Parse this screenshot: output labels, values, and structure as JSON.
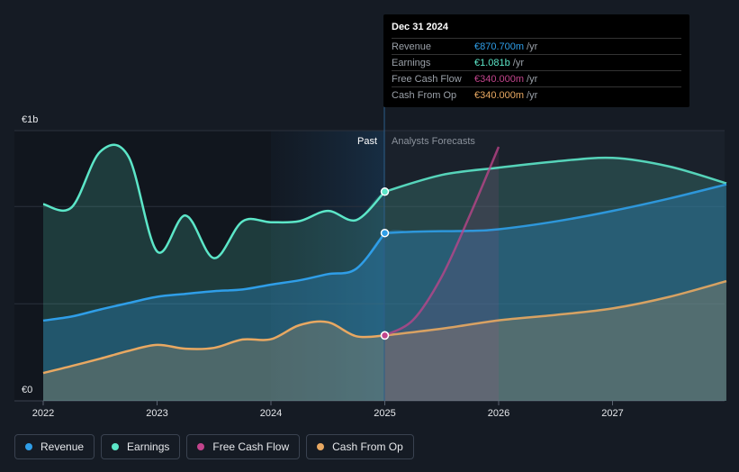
{
  "chart_data": {
    "type": "area",
    "y_axis": {
      "top_label": "€1b",
      "bottom_label": "€0",
      "ylim": [
        0,
        1000
      ]
    },
    "x_ticks": [
      "2022",
      "2023",
      "2024",
      "2025",
      "2026",
      "2027"
    ],
    "zones": {
      "past": "Past",
      "forecast": "Analysts Forecasts"
    },
    "series": [
      {
        "name": "Revenue",
        "color": "#2f9ee8",
        "past": [
          [
            2022.0,
            297
          ],
          [
            2022.25,
            312
          ],
          [
            2022.5,
            338
          ],
          [
            2022.75,
            362
          ],
          [
            2023.0,
            385
          ],
          [
            2023.25,
            396
          ],
          [
            2023.5,
            406
          ],
          [
            2023.75,
            412
          ],
          [
            2024.0,
            430
          ],
          [
            2024.25,
            446
          ],
          [
            2024.5,
            469
          ],
          [
            2024.75,
            489
          ],
          [
            2025.0,
            621
          ]
        ],
        "forecast": [
          [
            2025.0,
            621
          ],
          [
            2025.25,
            626
          ],
          [
            2025.5,
            628
          ],
          [
            2025.75,
            629
          ],
          [
            2026.0,
            635
          ],
          [
            2026.5,
            664
          ],
          [
            2027.0,
            703
          ],
          [
            2027.5,
            749
          ],
          [
            2028.0,
            801
          ]
        ]
      },
      {
        "name": "Earnings",
        "color": "#5ce6c8",
        "past": [
          [
            2022.0,
            728
          ],
          [
            2022.25,
            716
          ],
          [
            2022.5,
            922
          ],
          [
            2022.75,
            903
          ],
          [
            2023.0,
            553
          ],
          [
            2023.25,
            686
          ],
          [
            2023.5,
            528
          ],
          [
            2023.75,
            664
          ],
          [
            2024.0,
            661
          ],
          [
            2024.25,
            665
          ],
          [
            2024.5,
            703
          ],
          [
            2024.75,
            669
          ],
          [
            2025.0,
            774
          ]
        ],
        "forecast": [
          [
            2025.0,
            774
          ],
          [
            2025.5,
            836
          ],
          [
            2026.0,
            863
          ],
          [
            2026.5,
            886
          ],
          [
            2027.0,
            899
          ],
          [
            2027.5,
            867
          ],
          [
            2028.0,
            805
          ]
        ]
      },
      {
        "name": "Free Cash Flow",
        "color": "#c2448c",
        "past": [],
        "forecast": [
          [
            2025.0,
            242
          ],
          [
            2025.25,
            300
          ],
          [
            2025.5,
            460
          ],
          [
            2025.75,
            690
          ],
          [
            2026.0,
            940
          ]
        ]
      },
      {
        "name": "Cash From Op",
        "color": "#e8a862",
        "past": [
          [
            2022.0,
            103
          ],
          [
            2022.25,
            129
          ],
          [
            2022.5,
            156
          ],
          [
            2022.75,
            185
          ],
          [
            2023.0,
            207
          ],
          [
            2023.25,
            193
          ],
          [
            2023.5,
            196
          ],
          [
            2023.75,
            227
          ],
          [
            2024.0,
            228
          ],
          [
            2024.25,
            280
          ],
          [
            2024.5,
            291
          ],
          [
            2024.75,
            239
          ],
          [
            2025.0,
            242
          ]
        ],
        "forecast": [
          [
            2025.0,
            242
          ],
          [
            2025.5,
            267
          ],
          [
            2026.0,
            298
          ],
          [
            2026.5,
            318
          ],
          [
            2027.0,
            342
          ],
          [
            2027.5,
            385
          ],
          [
            2028.0,
            443
          ]
        ]
      }
    ]
  },
  "tooltip": {
    "date": "Dec 31 2024",
    "rows": [
      {
        "name": "Revenue",
        "value": "€870.700m",
        "unit": "/yr",
        "color": "#2f9ee8"
      },
      {
        "name": "Earnings",
        "value": "€1.081b",
        "unit": "/yr",
        "color": "#5ce6c8"
      },
      {
        "name": "Free Cash Flow",
        "value": "€340.000m",
        "unit": "/yr",
        "color": "#c2448c"
      },
      {
        "name": "Cash From Op",
        "value": "€340.000m",
        "unit": "/yr",
        "color": "#e8a862"
      }
    ]
  },
  "legend": [
    {
      "label": "Revenue",
      "color": "#2f9ee8"
    },
    {
      "label": "Earnings",
      "color": "#5ce6c8"
    },
    {
      "label": "Free Cash Flow",
      "color": "#c2448c"
    },
    {
      "label": "Cash From Op",
      "color": "#e8a862"
    }
  ]
}
